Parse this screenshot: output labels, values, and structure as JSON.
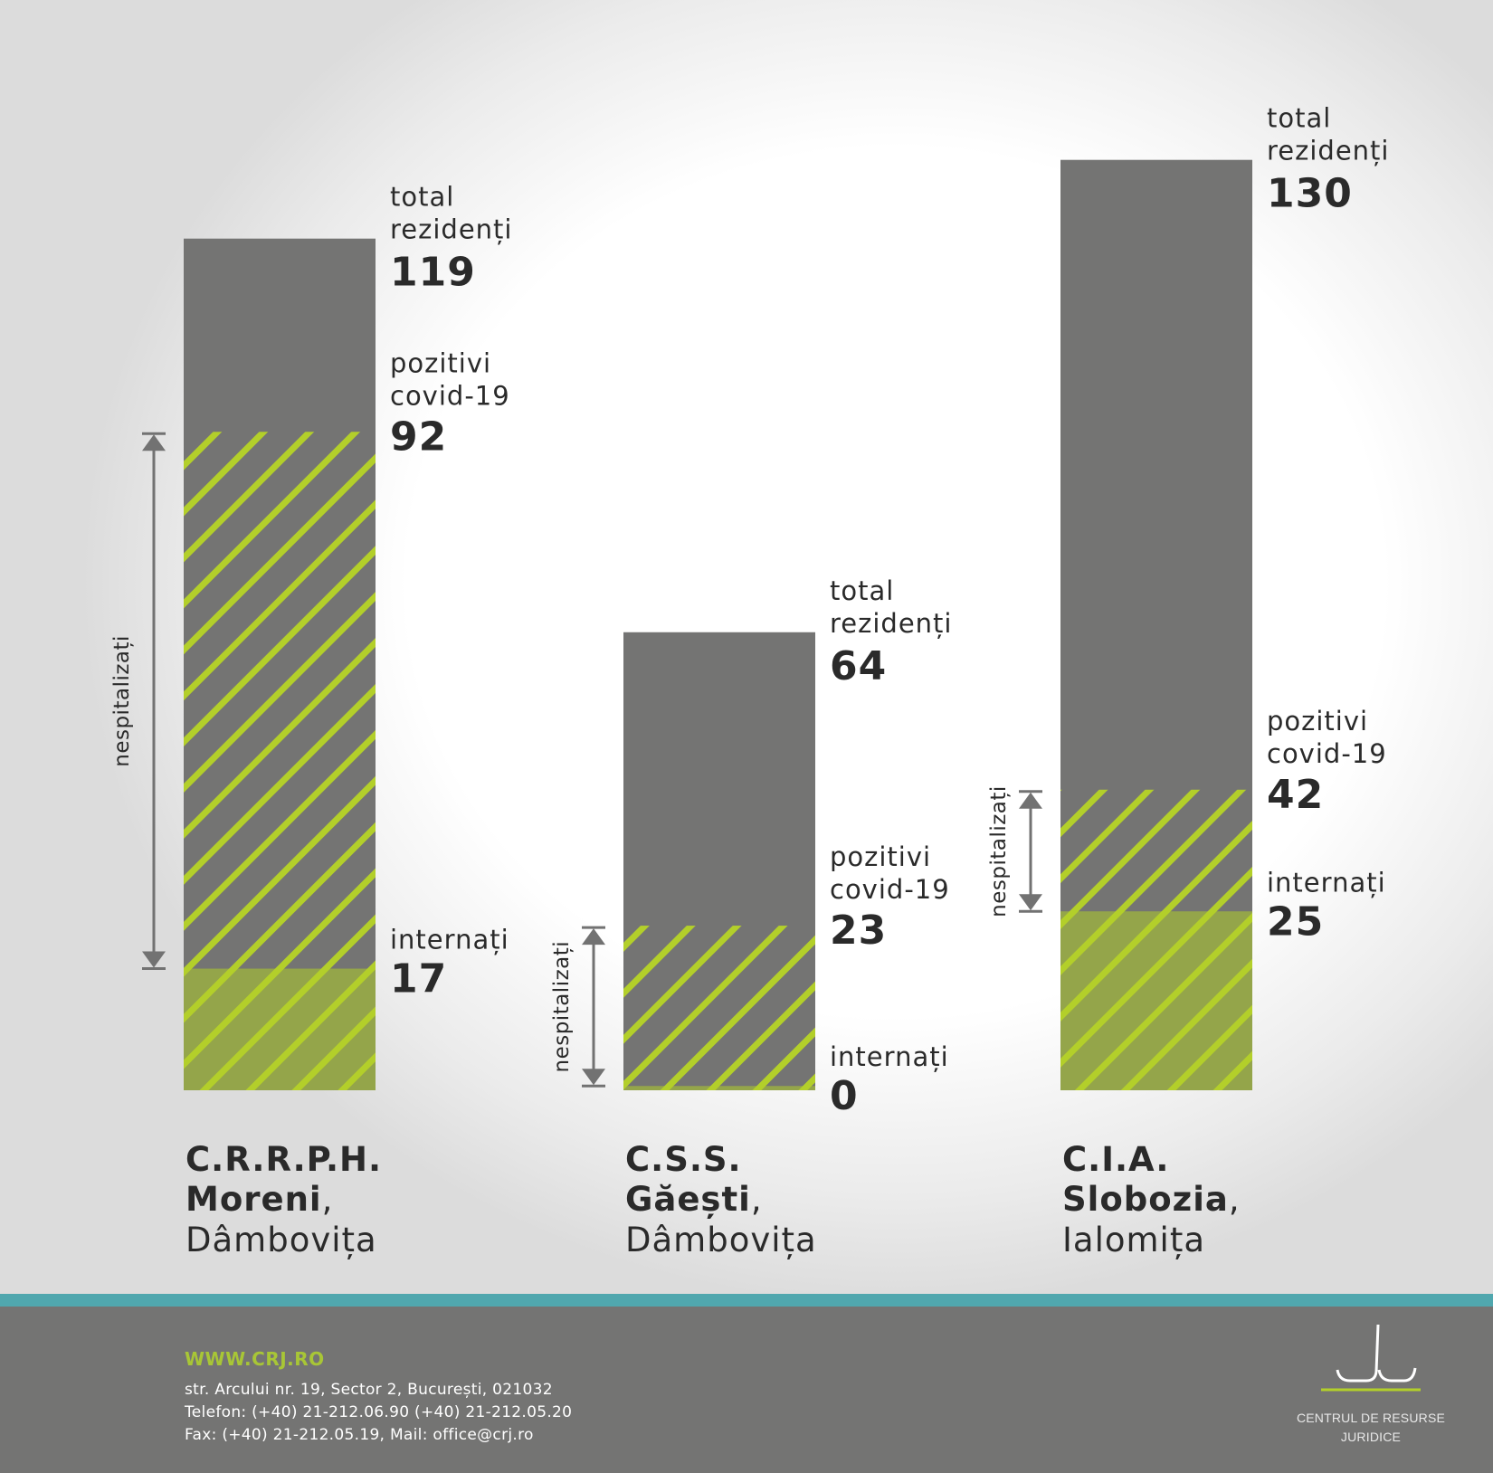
{
  "chart_data": {
    "type": "bar",
    "series_labels": {
      "total": [
        "total",
        "rezidenți"
      ],
      "positive": [
        "pozitivi",
        "covid-19"
      ],
      "hospitalized": "internați",
      "not_hospitalized": "nespitalizați"
    },
    "categories": [
      {
        "name": "C.R.R.P.H.",
        "city": "Moreni",
        "county": "Dâmbovița",
        "total": 119,
        "positive": 92,
        "hospitalized": 17
      },
      {
        "name": "C.S.S.",
        "city": "Găești",
        "county": "Dâmbovița",
        "total": 64,
        "positive": 23,
        "hospitalized": 0
      },
      {
        "name": "C.I.A.",
        "city": "Slobozia",
        "county": "Ialomița",
        "total": 130,
        "positive": 42,
        "hospitalized": 25
      }
    ]
  },
  "colors": {
    "total": "#747473",
    "hatch": "#b3cf2a",
    "hospitalized": "#94a54a",
    "arrow": "#727272",
    "text": "#2a2a2a",
    "footer_bg": "#747473",
    "footer_stripe": "#50a7ae",
    "footer_link": "#a8c636"
  },
  "footer": {
    "url": "WWW.CRJ.RO",
    "address": "str. Arcului nr. 19, Sector 2, București, 021032",
    "phone": "Telefon: (+40) 21-212.06.90 (+40) 21-212.05.20",
    "fax_mail": "Fax: (+40) 21-212.05.19, Mail: office@crj.ro"
  },
  "logo": {
    "icon": "crj-logo-icon",
    "line1": "CENTRUL DE RESURSE",
    "line2": "JURIDICE"
  }
}
